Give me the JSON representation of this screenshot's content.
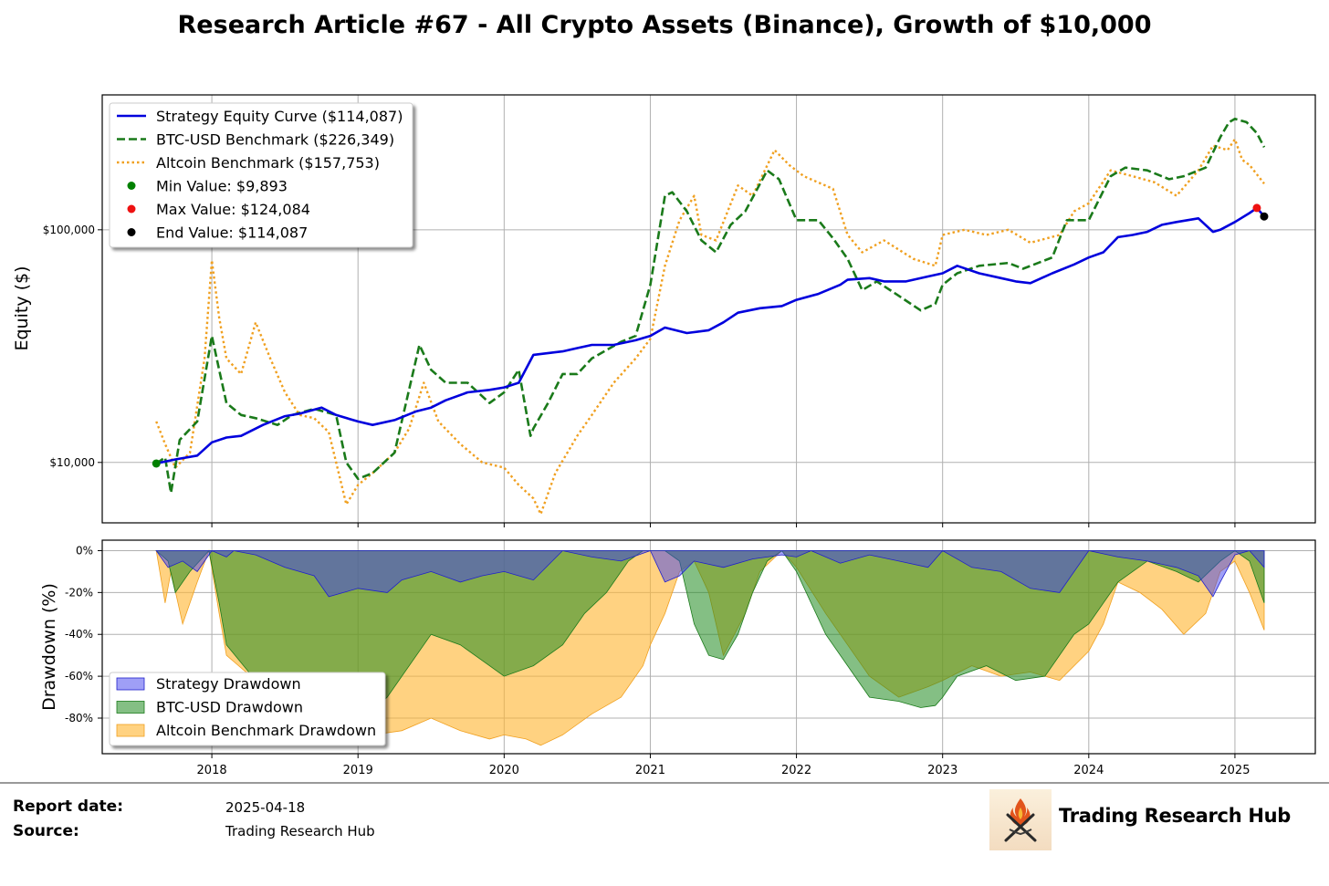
{
  "title": "Research Article #67 - All Crypto Assets (Binance), Growth of $10,000",
  "footer": {
    "report_date_label": "Report date:",
    "report_date": "2025-04-18",
    "source_label": "Source:",
    "source": "Trading Research Hub",
    "brand": "Trading Research Hub",
    "logo_icon": "flame-quill-logo-icon"
  },
  "colors": {
    "strategy": "#0000dd",
    "btc": "#1a7a1a",
    "altcoin": "#f0a020",
    "min_marker": "#008000",
    "max_marker": "#ee1111",
    "end_marker": "#000000"
  },
  "chart_data": [
    {
      "type": "line",
      "ylabel": "Equity ($)",
      "yscale": "log",
      "ylim": [
        5500,
        380000
      ],
      "yticks": [
        {
          "value": 10000,
          "label": "$10,000"
        },
        {
          "value": 100000,
          "label": "$100,000"
        }
      ],
      "xlim": [
        2017.25,
        2025.55
      ],
      "grid": true,
      "legend_position": "top-left",
      "legend": [
        "Strategy Equity Curve ($114,087)",
        "BTC-USD Benchmark ($226,349)",
        "Altcoin Benchmark ($157,753)",
        "Min Value: $9,893",
        "Max Value: $124,084",
        "End Value: $114,087"
      ],
      "series": [
        {
          "name": "Strategy Equity Curve ($114,087)",
          "style": "solid",
          "x": [
            2017.62,
            2017.75,
            2017.9,
            2018.0,
            2018.1,
            2018.2,
            2018.35,
            2018.5,
            2018.6,
            2018.75,
            2018.85,
            2019.0,
            2019.1,
            2019.25,
            2019.4,
            2019.5,
            2019.6,
            2019.75,
            2019.9,
            2020.0,
            2020.1,
            2020.2,
            2020.4,
            2020.5,
            2020.6,
            2020.75,
            2020.9,
            2021.0,
            2021.1,
            2021.25,
            2021.4,
            2021.5,
            2021.6,
            2021.75,
            2021.9,
            2022.0,
            2022.15,
            2022.3,
            2022.35,
            2022.5,
            2022.6,
            2022.75,
            2022.9,
            2023.0,
            2023.1,
            2023.25,
            2023.4,
            2023.5,
            2023.6,
            2023.75,
            2023.9,
            2024.0,
            2024.1,
            2024.2,
            2024.3,
            2024.4,
            2024.5,
            2024.6,
            2024.75,
            2024.85,
            2024.9,
            2025.0,
            2025.1,
            2025.15,
            2025.2
          ],
          "y": [
            9900,
            10300,
            10700,
            12200,
            12800,
            13000,
            14500,
            15800,
            16200,
            17200,
            16000,
            15000,
            14500,
            15200,
            16600,
            17200,
            18500,
            20000,
            20500,
            21000,
            22000,
            29000,
            30000,
            31000,
            32000,
            32000,
            33500,
            35000,
            38000,
            36000,
            37000,
            40000,
            44000,
            46000,
            47000,
            50000,
            53000,
            58000,
            61000,
            62000,
            60000,
            60000,
            63000,
            65000,
            70000,
            65000,
            62000,
            60000,
            59000,
            65000,
            71000,
            76000,
            80000,
            93000,
            95000,
            98000,
            105000,
            108000,
            112000,
            98000,
            100000,
            108000,
            118000,
            124084,
            114087
          ]
        },
        {
          "name": "BTC-USD Benchmark ($226,349)",
          "style": "dashed",
          "x": [
            2017.62,
            2017.68,
            2017.72,
            2017.78,
            2017.9,
            2018.0,
            2018.05,
            2018.1,
            2018.2,
            2018.3,
            2018.45,
            2018.55,
            2018.7,
            2018.85,
            2018.92,
            2019.0,
            2019.1,
            2019.25,
            2019.42,
            2019.5,
            2019.6,
            2019.75,
            2019.9,
            2020.0,
            2020.1,
            2020.18,
            2020.2,
            2020.3,
            2020.4,
            2020.5,
            2020.6,
            2020.8,
            2020.9,
            2021.0,
            2021.1,
            2021.15,
            2021.25,
            2021.35,
            2021.45,
            2021.55,
            2021.65,
            2021.8,
            2021.88,
            2022.0,
            2022.15,
            2022.25,
            2022.35,
            2022.45,
            2022.55,
            2022.7,
            2022.85,
            2022.95,
            2023.0,
            2023.1,
            2023.25,
            2023.45,
            2023.55,
            2023.75,
            2023.85,
            2024.0,
            2024.15,
            2024.25,
            2024.4,
            2024.55,
            2024.65,
            2024.8,
            2024.9,
            2024.96,
            2025.0,
            2025.08,
            2025.15,
            2025.2
          ],
          "y": [
            9900,
            10500,
            7400,
            12500,
            15000,
            35000,
            25000,
            18000,
            16000,
            15500,
            14500,
            16000,
            17000,
            16000,
            10000,
            8500,
            9000,
            11000,
            32000,
            25000,
            22000,
            22000,
            18000,
            20000,
            25000,
            13000,
            14000,
            18000,
            24000,
            24000,
            28000,
            33000,
            35000,
            58000,
            140000,
            145000,
            120000,
            90000,
            80000,
            105000,
            120000,
            180000,
            165000,
            110000,
            110000,
            92000,
            75000,
            55000,
            60000,
            52000,
            45000,
            48000,
            58000,
            65000,
            70000,
            72000,
            68000,
            76000,
            110000,
            110000,
            170000,
            185000,
            180000,
            165000,
            170000,
            185000,
            250000,
            290000,
            300000,
            290000,
            260000,
            226349
          ]
        },
        {
          "name": "Altcoin Benchmark ($157,753)",
          "style": "dotted",
          "x": [
            2017.62,
            2017.68,
            2017.75,
            2017.85,
            2017.95,
            2018.0,
            2018.05,
            2018.1,
            2018.2,
            2018.3,
            2018.4,
            2018.5,
            2018.6,
            2018.7,
            2018.8,
            2018.92,
            2019.0,
            2019.1,
            2019.25,
            2019.35,
            2019.45,
            2019.55,
            2019.7,
            2019.85,
            2020.0,
            2020.1,
            2020.2,
            2020.25,
            2020.35,
            2020.5,
            2020.6,
            2020.75,
            2020.9,
            2021.0,
            2021.1,
            2021.2,
            2021.3,
            2021.35,
            2021.45,
            2021.6,
            2021.7,
            2021.85,
            2021.95,
            2022.05,
            2022.25,
            2022.35,
            2022.45,
            2022.6,
            2022.8,
            2022.95,
            2023.0,
            2023.15,
            2023.3,
            2023.45,
            2023.6,
            2023.8,
            2023.9,
            2024.0,
            2024.15,
            2024.3,
            2024.45,
            2024.6,
            2024.75,
            2024.85,
            2024.95,
            2025.0,
            2025.05,
            2025.1,
            2025.2
          ],
          "y": [
            15000,
            12000,
            9500,
            11000,
            28000,
            74000,
            42000,
            28000,
            24000,
            40000,
            28000,
            20000,
            16000,
            15500,
            13500,
            6600,
            8000,
            9000,
            11000,
            14000,
            22000,
            15000,
            12000,
            10000,
            9500,
            8000,
            7000,
            6000,
            9000,
            13000,
            16000,
            22000,
            28000,
            34000,
            70000,
            110000,
            140000,
            95000,
            90000,
            155000,
            140000,
            220000,
            190000,
            170000,
            150000,
            95000,
            80000,
            90000,
            75000,
            70000,
            95000,
            100000,
            95000,
            100000,
            88000,
            95000,
            120000,
            130000,
            180000,
            170000,
            160000,
            140000,
            180000,
            230000,
            220000,
            245000,
            200000,
            190000,
            157753
          ]
        }
      ],
      "markers": [
        {
          "name": "Min Value: $9,893",
          "x": 2017.62,
          "y": 9893
        },
        {
          "name": "Max Value: $124,084",
          "x": 2025.15,
          "y": 124084
        },
        {
          "name": "End Value: $114,087",
          "x": 2025.2,
          "y": 114087
        }
      ]
    },
    {
      "type": "area",
      "ylabel": "Drawdown (%)",
      "ylim": [
        -97,
        5
      ],
      "yticks": [
        {
          "value": 0,
          "label": "0%"
        },
        {
          "value": -20,
          "label": "-20%"
        },
        {
          "value": -40,
          "label": "-40%"
        },
        {
          "value": -60,
          "label": "-60%"
        },
        {
          "value": -80,
          "label": "-80%"
        }
      ],
      "xlim": [
        2017.25,
        2025.55
      ],
      "xticks": [
        {
          "value": 2018,
          "label": "2018"
        },
        {
          "value": 2019,
          "label": "2019"
        },
        {
          "value": 2020,
          "label": "2020"
        },
        {
          "value": 2021,
          "label": "2021"
        },
        {
          "value": 2022,
          "label": "2022"
        },
        {
          "value": 2023,
          "label": "2023"
        },
        {
          "value": 2024,
          "label": "2024"
        },
        {
          "value": 2025,
          "label": "2025"
        }
      ],
      "grid": true,
      "legend_position": "bottom-left",
      "legend": [
        "Strategy Drawdown",
        "BTC-USD Drawdown",
        "Altcoin Benchmark Drawdown"
      ],
      "series": [
        {
          "name": "Altcoin Benchmark Drawdown",
          "x": [
            2017.62,
            2017.68,
            2017.72,
            2017.8,
            2017.9,
            2017.98,
            2018.05,
            2018.1,
            2018.3,
            2018.5,
            2018.7,
            2018.9,
            2019.1,
            2019.3,
            2019.5,
            2019.7,
            2019.9,
            2020.0,
            2020.15,
            2020.25,
            2020.4,
            2020.6,
            2020.8,
            2020.95,
            2021.0,
            2021.1,
            2021.2,
            2021.3,
            2021.4,
            2021.5,
            2021.65,
            2021.75,
            2021.9,
            2022.0,
            2022.2,
            2022.35,
            2022.5,
            2022.7,
            2022.9,
            2023.0,
            2023.2,
            2023.4,
            2023.6,
            2023.8,
            2024.0,
            2024.1,
            2024.2,
            2024.35,
            2024.5,
            2024.65,
            2024.8,
            2024.9,
            2025.0,
            2025.1,
            2025.2
          ],
          "y": [
            0,
            -25,
            -10,
            -35,
            -15,
            0,
            -30,
            -50,
            -62,
            -77,
            -82,
            -90,
            -88,
            -86,
            -80,
            -86,
            -90,
            -88,
            -90,
            -93,
            -88,
            -78,
            -70,
            -55,
            -45,
            -30,
            -10,
            -5,
            -20,
            -50,
            -30,
            -10,
            0,
            -8,
            -30,
            -45,
            -60,
            -70,
            -65,
            -62,
            -55,
            -60,
            -58,
            -62,
            -48,
            -35,
            -15,
            -20,
            -28,
            -40,
            -30,
            -10,
            -5,
            -20,
            -38
          ]
        },
        {
          "name": "BTC-USD Drawdown",
          "x": [
            2017.62,
            2017.7,
            2017.75,
            2017.85,
            2017.98,
            2018.05,
            2018.1,
            2018.3,
            2018.5,
            2018.7,
            2018.9,
            2019.0,
            2019.2,
            2019.5,
            2019.7,
            2019.9,
            2020.0,
            2020.2,
            2020.3,
            2020.4,
            2020.55,
            2020.7,
            2020.85,
            2020.95,
            2021.1,
            2021.2,
            2021.3,
            2021.4,
            2021.5,
            2021.6,
            2021.7,
            2021.8,
            2021.9,
            2022.0,
            2022.2,
            2022.35,
            2022.5,
            2022.7,
            2022.85,
            2022.95,
            2023.0,
            2023.1,
            2023.3,
            2023.5,
            2023.7,
            2023.9,
            2024.0,
            2024.2,
            2024.4,
            2024.6,
            2024.75,
            2024.9,
            2025.0,
            2025.1,
            2025.2
          ],
          "y": [
            0,
            -5,
            -20,
            -10,
            0,
            -25,
            -45,
            -62,
            -70,
            -72,
            -80,
            -82,
            -70,
            -40,
            -45,
            -55,
            -60,
            -55,
            -50,
            -45,
            -30,
            -20,
            -5,
            0,
            0,
            -5,
            -35,
            -50,
            -52,
            -40,
            -20,
            -5,
            0,
            -10,
            -40,
            -55,
            -70,
            -72,
            -75,
            -74,
            -70,
            -60,
            -55,
            -62,
            -60,
            -40,
            -35,
            -15,
            -5,
            -10,
            -15,
            -5,
            0,
            -5,
            -25
          ]
        },
        {
          "name": "Strategy Drawdown",
          "x": [
            2017.62,
            2017.7,
            2017.8,
            2017.9,
            2018.0,
            2018.1,
            2018.15,
            2018.3,
            2018.5,
            2018.7,
            2018.8,
            2018.9,
            2019.0,
            2019.2,
            2019.3,
            2019.5,
            2019.7,
            2019.85,
            2020.0,
            2020.2,
            2020.4,
            2020.6,
            2020.8,
            2021.0,
            2021.1,
            2021.2,
            2021.3,
            2021.5,
            2021.7,
            2021.9,
            2022.0,
            2022.1,
            2022.3,
            2022.5,
            2022.7,
            2022.9,
            2023.0,
            2023.2,
            2023.4,
            2023.6,
            2023.8,
            2024.0,
            2024.2,
            2024.4,
            2024.6,
            2024.75,
            2024.85,
            2024.9,
            2025.0,
            2025.1,
            2025.2
          ],
          "y": [
            0,
            -8,
            -5,
            -10,
            0,
            -3,
            0,
            -2,
            -8,
            -12,
            -22,
            -20,
            -18,
            -20,
            -14,
            -10,
            -15,
            -12,
            -10,
            -14,
            0,
            -3,
            -5,
            0,
            -15,
            -12,
            -5,
            -8,
            -4,
            -2,
            -3,
            0,
            -6,
            -2,
            -5,
            -8,
            0,
            -8,
            -10,
            -18,
            -20,
            0,
            -3,
            -5,
            -8,
            -12,
            -22,
            -15,
            -2,
            0,
            -8
          ]
        }
      ]
    }
  ]
}
